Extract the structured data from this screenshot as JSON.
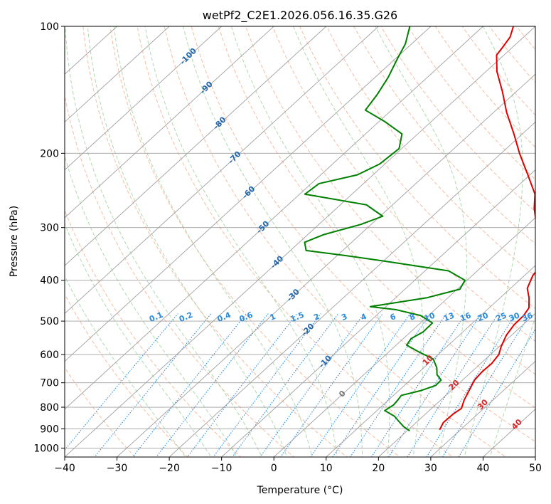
{
  "chart_data": {
    "type": "skew-t",
    "title": "wetPf2_C2E1.2026.056.16.35.G26",
    "xlabel": "Temperature (°C)",
    "ylabel": "Pressure (hPa)",
    "xlim": [
      -40,
      50
    ],
    "ylim": [
      1050,
      100
    ],
    "x_ticks": [
      "−40",
      "−30",
      "−20",
      "−10",
      "0",
      "10",
      "20",
      "30",
      "40",
      "50"
    ],
    "y_ticks": [
      {
        "p": 100,
        "label": "100"
      },
      {
        "p": 200,
        "label": "200"
      },
      {
        "p": 300,
        "label": "300"
      },
      {
        "p": 400,
        "label": "400"
      },
      {
        "p": 500,
        "label": "500"
      },
      {
        "p": 600,
        "label": "600"
      },
      {
        "p": 700,
        "label": "700"
      },
      {
        "p": 800,
        "label": "800"
      },
      {
        "p": 900,
        "label": "900"
      },
      {
        "p": 1000,
        "label": "1000"
      }
    ],
    "colors": {
      "temperature": "#e00000",
      "dewpoint": "#008000",
      "isotherm_grid": "#a0a0a0",
      "dry_adiabat": "#f4a582",
      "moist_adiabat": "#9ccf9c",
      "mixing_ratio": "#2b8cde",
      "isotherm_label": "#2166ac",
      "adiabat_label": "#d62728"
    },
    "isotherm_labels": [
      {
        "t": -100,
        "p": 118,
        "text": "-100"
      },
      {
        "t": -90,
        "p": 140,
        "text": "-90"
      },
      {
        "t": -80,
        "p": 170,
        "text": "-80"
      },
      {
        "t": -70,
        "p": 205,
        "text": "-70"
      },
      {
        "t": -60,
        "p": 248,
        "text": "-60"
      },
      {
        "t": -50,
        "p": 300,
        "text": "-50"
      },
      {
        "t": -40,
        "p": 363,
        "text": "-40"
      },
      {
        "t": -30,
        "p": 435,
        "text": "-30"
      },
      {
        "t": -20,
        "p": 525,
        "text": "-20"
      },
      {
        "t": -10,
        "p": 625,
        "text": "-10"
      },
      {
        "t": 0,
        "p": 745,
        "text": "0"
      }
    ],
    "mixing_ratio_labels": [
      "0.1",
      "0.2",
      "0.4",
      "0.6",
      "1",
      "1.5",
      "2",
      "3",
      "4",
      "6",
      "8",
      "10",
      "13",
      "16",
      "20",
      "25",
      "30",
      "36"
    ],
    "mixing_ratio_label_temps": [
      -22.5,
      -16.8,
      -9.5,
      -5.3,
      -0.2,
      4.5,
      8.2,
      13.5,
      17.2,
      22.8,
      26.5,
      29.8,
      33.5,
      36.7,
      40.0,
      43.5,
      46.0,
      48.5
    ],
    "mixing_ratio_label_pressure": 490,
    "dry_adiabat_labels": [
      {
        "theta_label": "10",
        "t": 29.5,
        "p": 620,
        "text": "10"
      },
      {
        "theta_label": "20",
        "t": 34.5,
        "p": 710,
        "text": "20"
      },
      {
        "theta_label": "30",
        "t": 40.0,
        "p": 790,
        "text": "30"
      },
      {
        "theta_label": "40",
        "t": 46.5,
        "p": 880,
        "text": "40"
      }
    ],
    "temperature_profile": [
      {
        "p": 905,
        "t": 26.0
      },
      {
        "p": 870,
        "t": 25.2
      },
      {
        "p": 830,
        "t": 25.3
      },
      {
        "p": 805,
        "t": 25.7
      },
      {
        "p": 770,
        "t": 24.5
      },
      {
        "p": 740,
        "t": 23.7
      },
      {
        "p": 715,
        "t": 23.0
      },
      {
        "p": 690,
        "t": 22.3
      },
      {
        "p": 660,
        "t": 22.0
      },
      {
        "p": 630,
        "t": 22.1
      },
      {
        "p": 600,
        "t": 21.6
      },
      {
        "p": 575,
        "t": 20.4
      },
      {
        "p": 540,
        "t": 19.0
      },
      {
        "p": 510,
        "t": 18.3
      },
      {
        "p": 485,
        "t": 18.2
      },
      {
        "p": 465,
        "t": 17.6
      },
      {
        "p": 440,
        "t": 15.5
      },
      {
        "p": 418,
        "t": 13.2
      },
      {
        "p": 390,
        "t": 11.6
      },
      {
        "p": 365,
        "t": 10.9
      },
      {
        "p": 345,
        "t": 9.4
      },
      {
        "p": 320,
        "t": 5.6
      },
      {
        "p": 295,
        "t": 1.6
      },
      {
        "p": 270,
        "t": -2.2
      },
      {
        "p": 250,
        "t": -5.0
      },
      {
        "p": 225,
        "t": -10.4
      },
      {
        "p": 200,
        "t": -16.5
      },
      {
        "p": 180,
        "t": -21.6
      },
      {
        "p": 160,
        "t": -27.5
      },
      {
        "p": 143,
        "t": -32.6
      },
      {
        "p": 128,
        "t": -37.9
      },
      {
        "p": 117,
        "t": -41.4
      },
      {
        "p": 111,
        "t": -42.0
      },
      {
        "p": 106,
        "t": -42.6
      },
      {
        "p": 100,
        "t": -44.2
      }
    ],
    "dewpoint_profile": [
      {
        "p": 910,
        "t": 20.5
      },
      {
        "p": 890,
        "t": 18.5
      },
      {
        "p": 865,
        "t": 16.5
      },
      {
        "p": 840,
        "t": 14.5
      },
      {
        "p": 815,
        "t": 11.5
      },
      {
        "p": 790,
        "t": 12.0
      },
      {
        "p": 770,
        "t": 11.8
      },
      {
        "p": 750,
        "t": 11.5
      },
      {
        "p": 730,
        "t": 14.3
      },
      {
        "p": 710,
        "t": 16.0
      },
      {
        "p": 690,
        "t": 15.9
      },
      {
        "p": 670,
        "t": 14.0
      },
      {
        "p": 645,
        "t": 12.5
      },
      {
        "p": 615,
        "t": 10.0
      },
      {
        "p": 590,
        "t": 5.5
      },
      {
        "p": 570,
        "t": 2.0
      },
      {
        "p": 550,
        "t": 1.5
      },
      {
        "p": 530,
        "t": 2.4
      },
      {
        "p": 505,
        "t": 2.3
      },
      {
        "p": 485,
        "t": -1.5
      },
      {
        "p": 470,
        "t": -7.3
      },
      {
        "p": 462,
        "t": -13.0
      },
      {
        "p": 440,
        "t": -4.0
      },
      {
        "p": 420,
        "t": 0.5
      },
      {
        "p": 400,
        "t": -0.4
      },
      {
        "p": 380,
        "t": -5.5
      },
      {
        "p": 360,
        "t": -20.0
      },
      {
        "p": 350,
        "t": -28.0
      },
      {
        "p": 340,
        "t": -37.0
      },
      {
        "p": 325,
        "t": -39.0
      },
      {
        "p": 312,
        "t": -37.0
      },
      {
        "p": 295,
        "t": -32.0
      },
      {
        "p": 282,
        "t": -29.5
      },
      {
        "p": 265,
        "t": -35.0
      },
      {
        "p": 250,
        "t": -49.0
      },
      {
        "p": 236,
        "t": -48.5
      },
      {
        "p": 225,
        "t": -43.0
      },
      {
        "p": 212,
        "t": -41.0
      },
      {
        "p": 195,
        "t": -40.5
      },
      {
        "p": 180,
        "t": -43.0
      },
      {
        "p": 168,
        "t": -49.0
      },
      {
        "p": 158,
        "t": -55.0
      },
      {
        "p": 145,
        "t": -56.0
      },
      {
        "p": 132,
        "t": -57.5
      },
      {
        "p": 120,
        "t": -59.5
      },
      {
        "p": 110,
        "t": -61.2
      },
      {
        "p": 100,
        "t": -64.0
      }
    ]
  }
}
